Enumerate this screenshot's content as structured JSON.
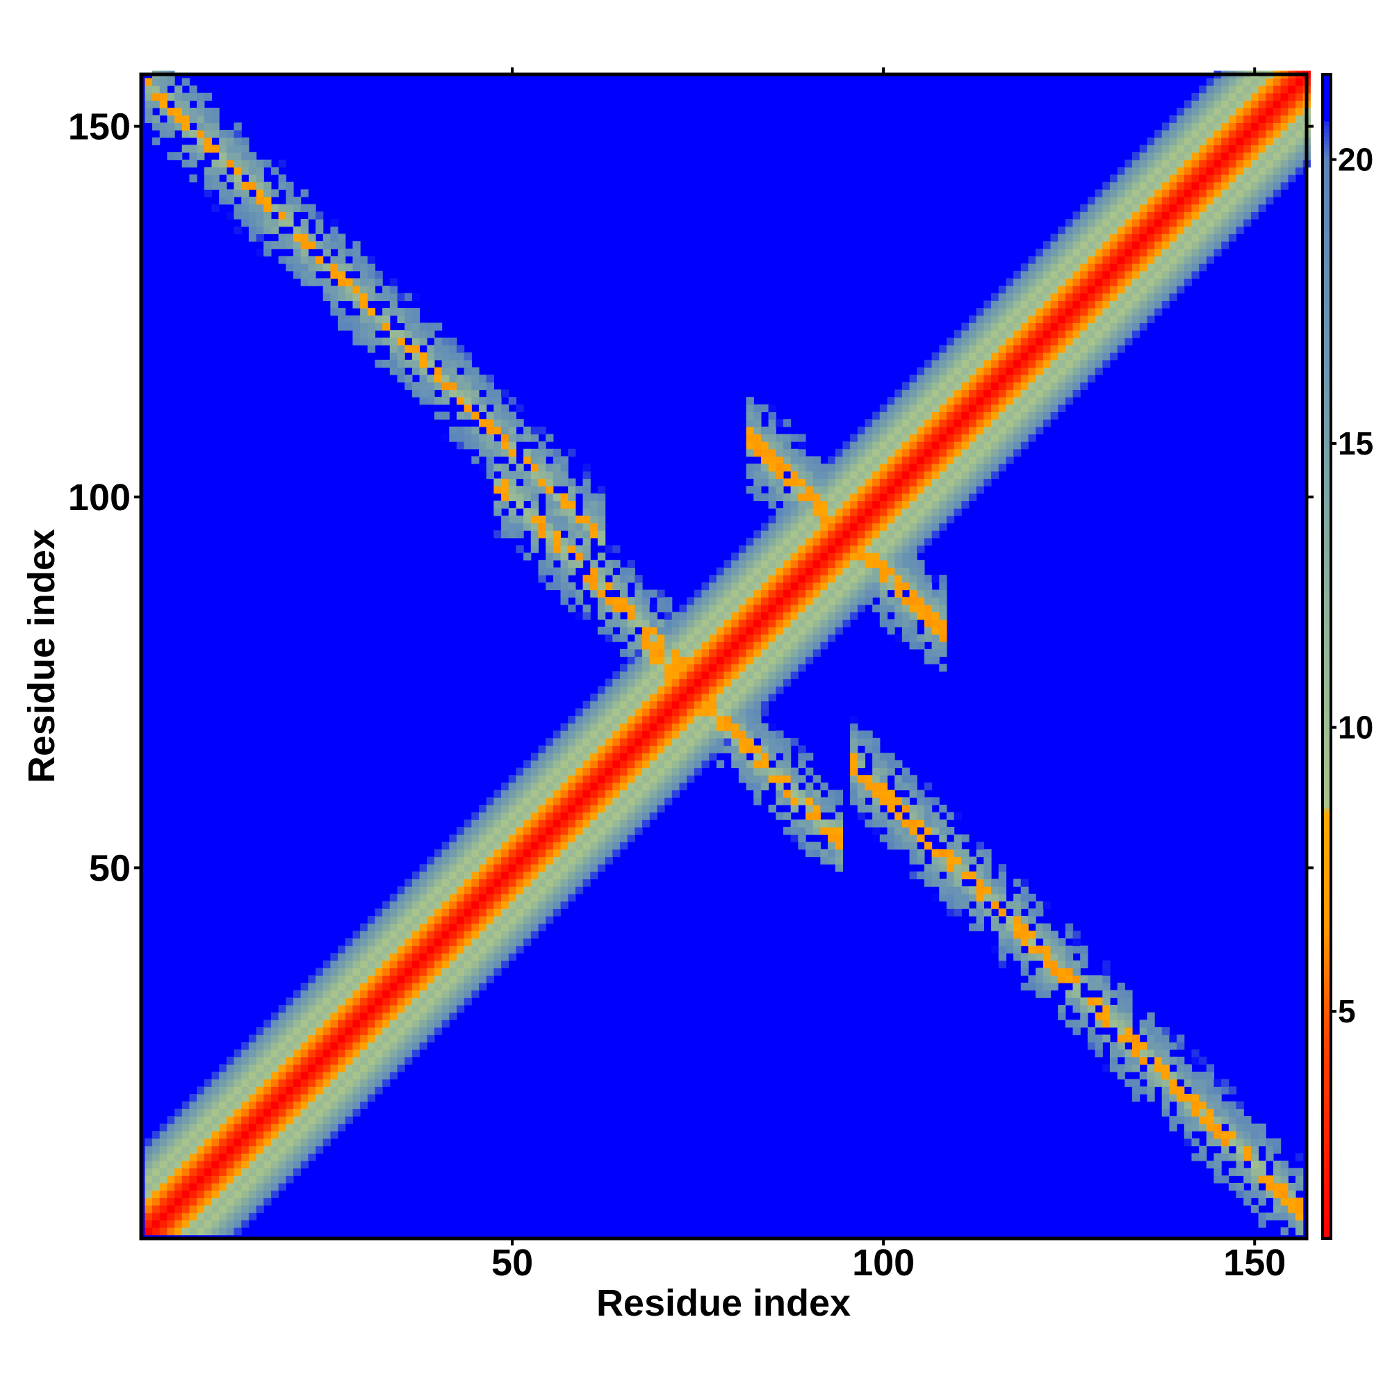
{
  "chart_data": {
    "type": "heatmap",
    "title": "",
    "xlabel": "Residue index",
    "ylabel": "Residue index",
    "n_residues": 157,
    "xlim": [
      1,
      157
    ],
    "ylim": [
      1,
      157
    ],
    "x_ticks": [
      50,
      100,
      150
    ],
    "y_ticks": [
      50,
      100,
      150
    ],
    "colorbar": {
      "range": [
        1,
        21.5
      ],
      "ticks": [
        5,
        10,
        15,
        20
      ],
      "stops": [
        {
          "value": 1,
          "color": "#ff0000"
        },
        {
          "value": 4.5,
          "color": "#ff4400"
        },
        {
          "value": 6.5,
          "color": "#ff9900"
        },
        {
          "value": 8.5,
          "color": "#ffaa00"
        },
        {
          "value": 8.6,
          "color": "#a8c48c"
        },
        {
          "value": 12,
          "color": "#8fb39a"
        },
        {
          "value": 16,
          "color": "#6f99b0"
        },
        {
          "value": 20,
          "color": "#5a85bb"
        },
        {
          "value": 21,
          "color": "#0000ff"
        }
      ]
    },
    "background_value": 21,
    "background_color": "#0000ff",
    "structure": {
      "diagonal_band_halfwidth": 12,
      "antidiagonal_strands": [
        {
          "i_start": 5,
          "i_end": 58,
          "j_start": 150,
          "j_end": 100
        },
        {
          "i_start": 52,
          "i_end": 72,
          "j_start": 96,
          "j_end": 80
        },
        {
          "i_start": 72,
          "i_end": 90,
          "j_start": 76,
          "j_end": 58
        },
        {
          "i_start": 86,
          "i_end": 104,
          "j_start": 104,
          "j_end": 86
        },
        {
          "i_start": 100,
          "i_end": 152,
          "j_start": 60,
          "j_end": 8
        }
      ]
    }
  }
}
